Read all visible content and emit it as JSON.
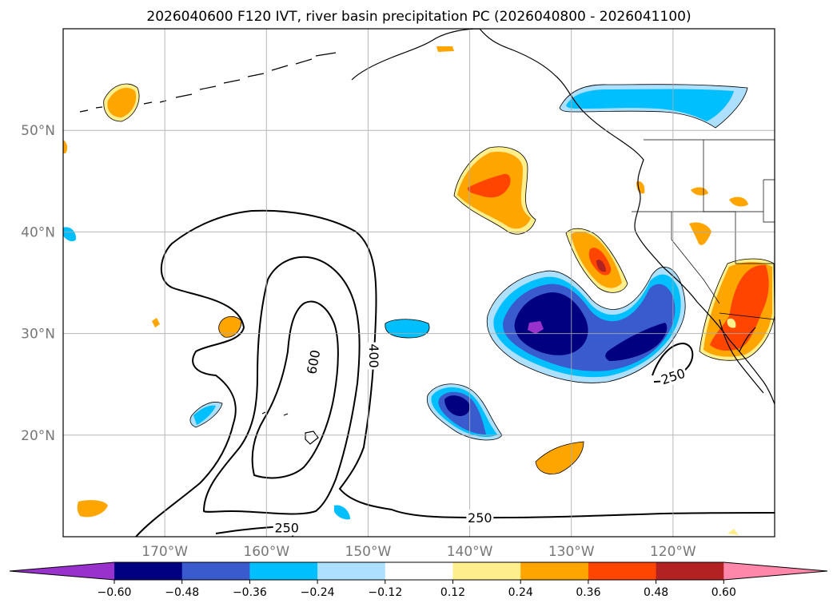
{
  "chart_data": {
    "type": "map-contour",
    "title": "2026040600 F120 IVT, river basin precipitation PC (2026040800 - 2026041100)",
    "lon_ticks": [
      {
        "value": -170,
        "label": "170°W"
      },
      {
        "value": -160,
        "label": "160°W"
      },
      {
        "value": -150,
        "label": "150°W"
      },
      {
        "value": -140,
        "label": "140°W"
      },
      {
        "value": -130,
        "label": "130°W"
      },
      {
        "value": -120,
        "label": "120°W"
      }
    ],
    "lat_ticks": [
      {
        "value": 20,
        "label": "20°N"
      },
      {
        "value": 30,
        "label": "30°N"
      },
      {
        "value": 40,
        "label": "40°N"
      },
      {
        "value": 50,
        "label": "50°N"
      }
    ],
    "extent": {
      "lon": [
        -180,
        -110
      ],
      "lat": [
        10,
        60
      ]
    },
    "grid": true,
    "ivt_contour_levels": [
      250,
      400,
      600
    ],
    "ivt_contour_labels": [
      {
        "text": "250",
        "lon": -158,
        "lat": 10.9
      },
      {
        "text": "250",
        "lon": -139,
        "lat": 11.9
      },
      {
        "text": "250",
        "lon": -120,
        "lat": 25.8
      },
      {
        "text": "400",
        "lon": -149.4,
        "lat": 27.8
      },
      {
        "text": "600",
        "lon": -155.4,
        "lat": 27.2
      }
    ],
    "colorbar": {
      "ticks": [
        "−0.60",
        "−0.48",
        "−0.36",
        "−0.24",
        "−0.12",
        "0.12",
        "0.24",
        "0.36",
        "0.48",
        "0.60"
      ],
      "colors": [
        "#9932cc",
        "#000080",
        "#3a5bcd",
        "#00bfff",
        "#addfff",
        "#ffffff",
        "#ffee8c",
        "#ffa500",
        "#ff4500",
        "#b22222",
        "#ff88aa"
      ],
      "extend": "both"
    },
    "precip_pc_regions": [
      {
        "name": "eastern-pacific-negative",
        "center_lon": -131,
        "center_lat": 31,
        "min_value": -0.6
      },
      {
        "name": "subtropical-negative",
        "center_lon": -139,
        "center_lat": 22,
        "min_value": -0.48
      },
      {
        "name": "pacific-northwest-negative",
        "center_lon": -122,
        "center_lat": 53,
        "min_value": -0.36
      },
      {
        "name": "midlatitude-positive",
        "center_lon": -135,
        "center_lat": 44,
        "max_value": 0.36
      },
      {
        "name": "offshore-california-positive",
        "center_lon": -126,
        "center_lat": 37,
        "max_value": 0.48
      },
      {
        "name": "southwest-us-positive",
        "center_lon": -113,
        "center_lat": 33,
        "max_value": 0.36
      }
    ]
  }
}
